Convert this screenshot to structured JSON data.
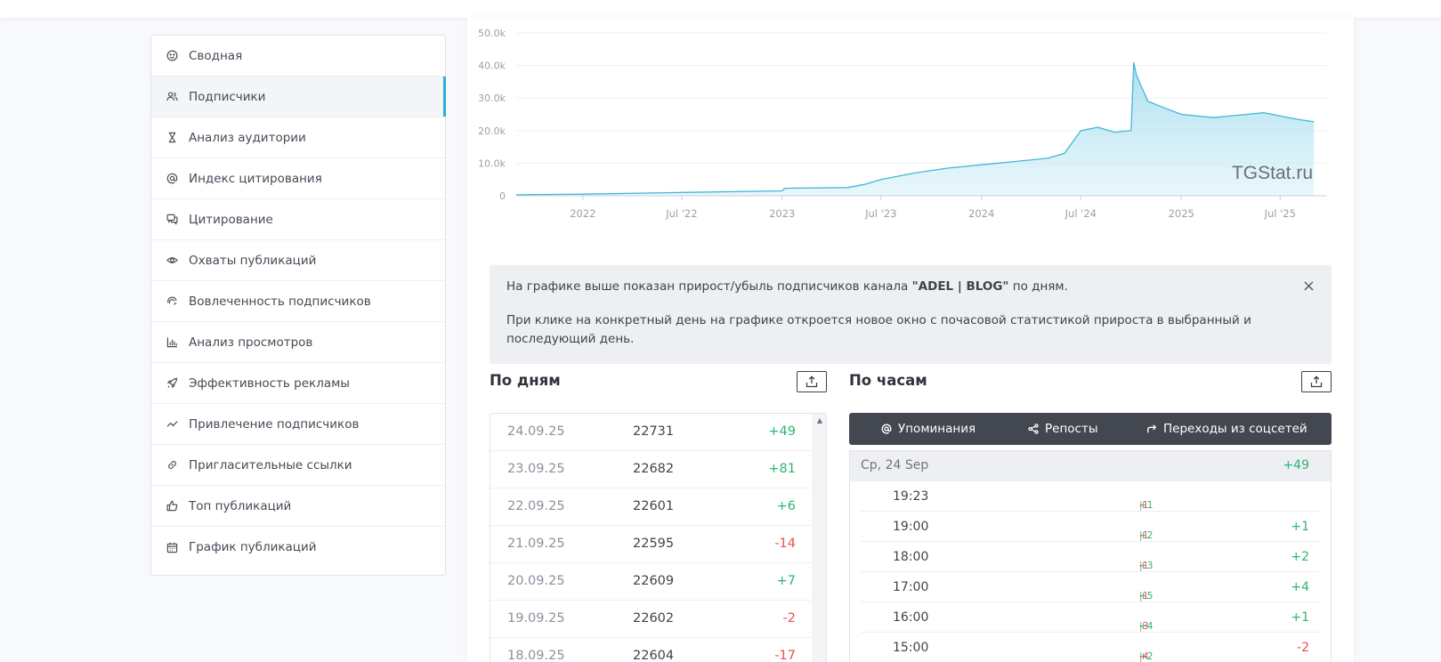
{
  "sidebar": {
    "items": [
      {
        "label": "Сводная",
        "icon": "smile-icon"
      },
      {
        "label": "Подписчики",
        "icon": "users-icon",
        "active": true
      },
      {
        "label": "Анализ аудитории",
        "icon": "hourglass-icon"
      },
      {
        "label": "Индекс цитирования",
        "icon": "at-icon"
      },
      {
        "label": "Цитирование",
        "icon": "chat-icon"
      },
      {
        "label": "Охваты публикаций",
        "icon": "eye-icon"
      },
      {
        "label": "Вовлеченность подписчиков",
        "icon": "engagement-icon"
      },
      {
        "label": "Анализ просмотров",
        "icon": "bar-chart-icon"
      },
      {
        "label": "Эффективность рекламы",
        "icon": "rocket-icon"
      },
      {
        "label": "Привлечение подписчиков",
        "icon": "trend-icon"
      },
      {
        "label": "Пригласительные ссылки",
        "icon": "link-icon"
      },
      {
        "label": "Топ публикаций",
        "icon": "thumbs-up-icon"
      },
      {
        "label": "График публикаций",
        "icon": "calendar-icon"
      }
    ]
  },
  "chart_data": {
    "type": "area",
    "ytick_labels": [
      "0",
      "10.0k",
      "20.0k",
      "30.0k",
      "40.0k",
      "50.0k"
    ],
    "ylim": [
      0,
      50000
    ],
    "xtick_labels": [
      "2022",
      "Jul '22",
      "2023",
      "Jul '23",
      "2024",
      "Jul '24",
      "2025",
      "Jul '25"
    ],
    "watermark": "TGStat.ru",
    "grid": true,
    "color": "#40b8d8",
    "x": [
      "2021-09",
      "2022-01",
      "2022-07",
      "2023-01",
      "2023-01",
      "2023-05",
      "2023-06",
      "2023-07",
      "2023-09",
      "2023-11",
      "2024-01",
      "2024-03",
      "2024-05",
      "2024-06",
      "2024-07",
      "2024-08",
      "2024-09",
      "2024-10",
      "2024-10",
      "2024-10",
      "2024-11",
      "2024-12",
      "2025-01",
      "2025-03",
      "2025-05",
      "2025-06",
      "2025-08",
      "2025-09"
    ],
    "values": [
      300,
      500,
      1000,
      1500,
      2300,
      2500,
      3500,
      5000,
      7000,
      8500,
      9500,
      10500,
      11500,
      13000,
      20000,
      21000,
      19500,
      20000,
      41000,
      37000,
      29000,
      27000,
      25000,
      24000,
      25000,
      25500,
      23500,
      22700
    ]
  },
  "alert": {
    "line1_before": "На графике выше показан прирост/убыль подписчиков канала ",
    "channel": "\"ADEL | BLOG\"",
    "line1_after": " по дням.",
    "line2": "При клике на конкретный день на графике откроется новое окно с почасовой статистикой прироста в выбранный и последующий день.",
    "close": "×"
  },
  "days": {
    "title": "По дням",
    "rows": [
      {
        "date": "24.09.25",
        "value": "22731",
        "diff": "+49"
      },
      {
        "date": "23.09.25",
        "value": "22682",
        "diff": "+81"
      },
      {
        "date": "22.09.25",
        "value": "22601",
        "diff": "+6"
      },
      {
        "date": "21.09.25",
        "value": "22595",
        "diff": "-14"
      },
      {
        "date": "20.09.25",
        "value": "22609",
        "diff": "+7"
      },
      {
        "date": "19.09.25",
        "value": "22602",
        "diff": "-2"
      },
      {
        "date": "18.09.25",
        "value": "22604",
        "diff": "-17"
      }
    ]
  },
  "hours": {
    "title": "По часам",
    "tabs": [
      {
        "label": "Упоминания",
        "icon": "at-icon"
      },
      {
        "label": "Репосты",
        "icon": "share-icon"
      },
      {
        "label": "Переходы из соцсетей",
        "icon": "forward-icon"
      }
    ],
    "day_header": {
      "date": "Ср, 24 Sep",
      "total": "+49"
    },
    "rows": [
      {
        "time": "19:23",
        "plus": "+1",
        "minus": "-1",
        "net": ""
      },
      {
        "time": "19:00",
        "plus": "+2",
        "minus": "-1",
        "net": "+1"
      },
      {
        "time": "18:00",
        "plus": "+3",
        "minus": "-1",
        "net": "+2"
      },
      {
        "time": "17:00",
        "plus": "+5",
        "minus": "-1",
        "net": "+4"
      },
      {
        "time": "16:00",
        "plus": "+4",
        "minus": "-3",
        "net": "+1"
      },
      {
        "time": "15:00",
        "plus": "+2",
        "minus": "-4",
        "net": "-2"
      }
    ]
  },
  "colors": {
    "accent": "#2ab0d6",
    "positive": "#2bb673",
    "negative": "#e8504b",
    "tabs_bg": "#434850"
  }
}
